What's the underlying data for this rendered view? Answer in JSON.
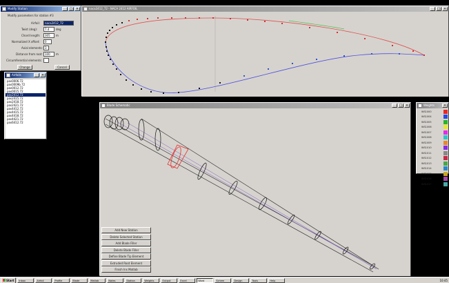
{
  "station_window": {
    "title": "Modify Station",
    "heading": "Modify parameters for station #3",
    "airfoil_label": "Airfoil:",
    "airfoil_value": "naca2412_72",
    "twist_label": "Twist (deg):",
    "twist_value": "7.4",
    "twist_unit": "deg",
    "chord_label": "Chord length:",
    "chord_value": "305",
    "chord_unit": "m",
    "offset_label": "Normalized X offset:",
    "offset_value": "0",
    "axial_label": "Axial elements:",
    "axial_value": "3",
    "distance_label": "Distance from root:",
    "distance_value": "100",
    "distance_unit": "m",
    "circ_label": "Circumferential elements:",
    "circ_value": "",
    "change_button": "Change",
    "cancel_button": "Cancel"
  },
  "airfoil_window": {
    "title": "Airfoils",
    "items": [
      "pas0006.72",
      "pas0009b.72",
      "pas0012.72",
      "pas0015.72",
      "pas2412.72",
      "pas2415.72",
      "pas2418.72",
      "pas2421.72",
      "pas4412.72",
      "pas4415.72",
      "pas4418.72",
      "pas4421.72",
      "pas6412.72"
    ],
    "selected_index": 4
  },
  "profile_window": {
    "title": "naca2412_72 - NACA 2412 AIRFOIL"
  },
  "view_window": {
    "title": "Blade Schematic"
  },
  "buttons_panel": {
    "buttons": [
      "Add New Station",
      "Delete Selected Station",
      "Add Blade Filler",
      "Delete Blade Filler",
      "Define Blade Tip Element",
      "Extruded Root Element",
      "Finish Ins Matlab"
    ]
  },
  "weights_window": {
    "title": "Weights",
    "items": [
      {
        "label": "WS1000",
        "color": "#e82828"
      },
      {
        "label": "WS1004",
        "color": "#2848e8"
      },
      {
        "label": "WS1005",
        "color": "#28b428"
      },
      {
        "label": "WS1006",
        "color": "#e8e828"
      },
      {
        "label": "WS1007",
        "color": "#e828e8"
      },
      {
        "label": "WS1008",
        "color": "#28c8c8"
      },
      {
        "label": "WS1009",
        "color": "#e88828"
      },
      {
        "label": "WS1010",
        "color": "#8828e8"
      },
      {
        "label": "WS1011",
        "color": "#888888"
      },
      {
        "label": "WS1012",
        "color": "#c82848"
      },
      {
        "label": "WS1013",
        "color": "#48a848"
      },
      {
        "label": "WS1014",
        "color": "#2888c8"
      },
      {
        "label": "WS1015",
        "color": "#c8a828"
      },
      {
        "label": "WS1016",
        "color": "#a848a8"
      },
      {
        "label": "WS1017",
        "color": "#48a8a8"
      }
    ]
  },
  "taskbar": {
    "start_label": "Start",
    "tasks": [
      "Inbox",
      "Airfoil",
      "Profile",
      "Blade",
      "Matlab",
      "Notes",
      "Station",
      "Weights",
      "Output",
      "Excel",
      "Word",
      "Schem",
      "Design",
      "Tools",
      "Help"
    ],
    "active_index": 10,
    "clock": "10:45"
  },
  "colors": {
    "desktop": "#000000",
    "title_active": "#0a246a",
    "airfoil_upper": "#e05050",
    "airfoil_lower": "#5050e0"
  }
}
